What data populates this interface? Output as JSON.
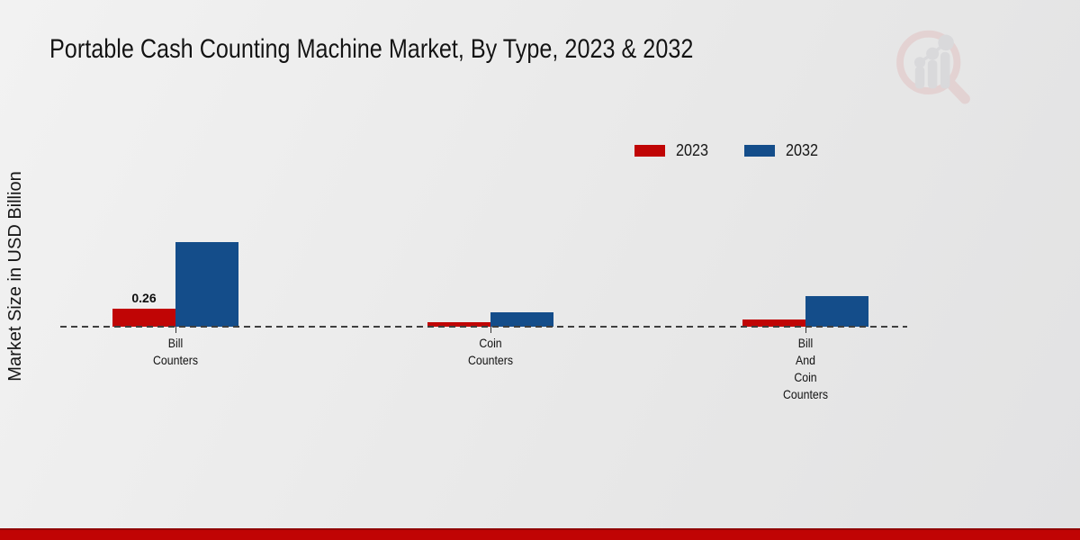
{
  "page": {
    "title": "Portable Cash Counting Machine Market, By Type, 2023 & 2032",
    "ylabel": "Market Size in USD Billion"
  },
  "legend": {
    "items": [
      {
        "label": "2023",
        "color": "#c00505"
      },
      {
        "label": "2032",
        "color": "#144d8a"
      }
    ]
  },
  "chart_data": {
    "type": "bar",
    "title": "Portable Cash Counting Machine Market, By Type, 2023 & 2032",
    "xlabel": "",
    "ylabel": "Market Size in USD Billion",
    "categories": [
      "Bill Counters",
      "Coin Counters",
      "Bill And Coin Counters"
    ],
    "category_label_lines": [
      [
        "Bill",
        "Counters"
      ],
      [
        "Coin",
        "Counters"
      ],
      [
        "Bill",
        "And",
        "Coin",
        "Counters"
      ]
    ],
    "series": [
      {
        "name": "2023",
        "color": "#c00505",
        "values": [
          0.26,
          0.06,
          0.1
        ]
      },
      {
        "name": "2032",
        "color": "#144d8a",
        "values": [
          1.2,
          0.2,
          0.43
        ]
      }
    ],
    "bar_labels": [
      {
        "series": "2023",
        "category_index": 0,
        "text": "0.26"
      }
    ],
    "ylim": [
      0,
      1.4
    ],
    "grid": false,
    "axis_style": "dashed-baseline-only",
    "legend_position": "top-right"
  },
  "colors": {
    "background": "#ebebeb",
    "baseline": "#3f3f3f",
    "bottom_band": "#c00404",
    "bottom_band_edge": "#8f0303",
    "watermark_ring": "#dfaeae",
    "watermark_bars": "#c2c2c8"
  },
  "watermark": {
    "icon": "magnifier-bar-chart-logo"
  }
}
